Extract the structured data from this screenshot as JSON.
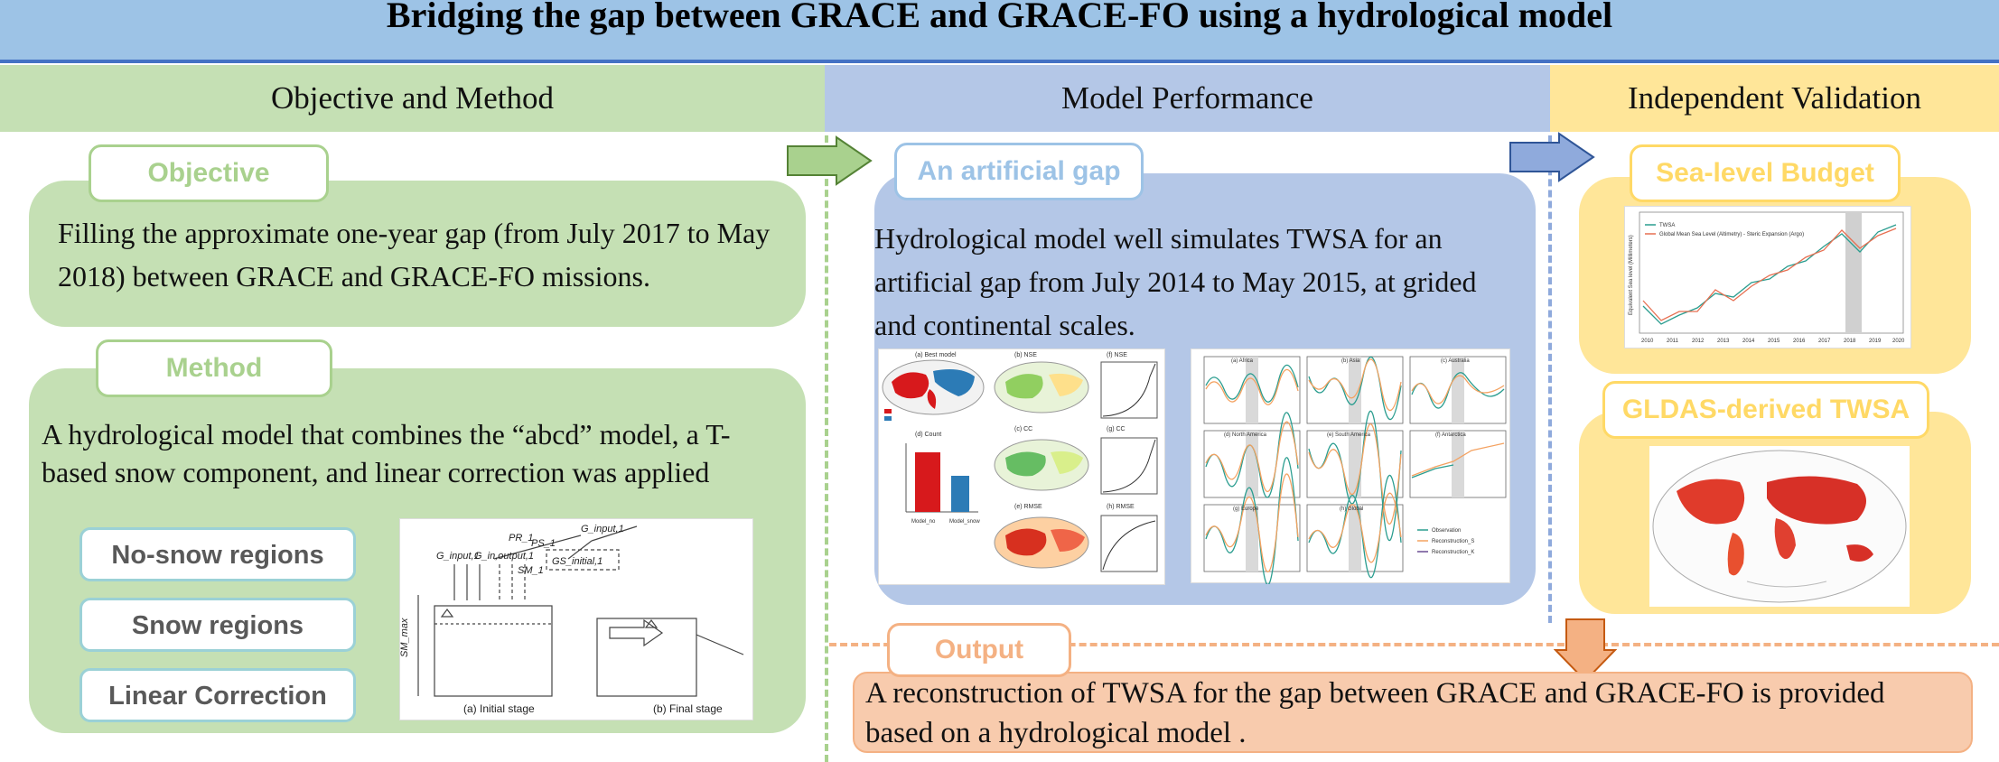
{
  "title": "Bridging the gap between GRACE and GRACE-FO using a hydrological model",
  "sections": {
    "left": "Objective and Method",
    "middle": "Model Performance",
    "right": "Independent Validation"
  },
  "objective": {
    "tag": "Objective",
    "text": "Filling the approximate one-year gap (from July 2017 to May 2018) between GRACE and GRACE-FO missions."
  },
  "method": {
    "tag": "Method",
    "text": "A hydrological model that combines the “abcd” model, a T-based snow component, and linear correction was applied",
    "regions": [
      "No-snow regions",
      "Snow regions",
      "Linear Correction"
    ],
    "diagram": {
      "caption_initial": "(a) Initial stage",
      "caption_final": "(b) Final stage"
    }
  },
  "performance": {
    "tag": "An artificial gap",
    "text": "Hydrological model well simulates TWSA for an artificial gap from July 2014 to May 2015, at grided and continental scales.",
    "map_panels": [
      "(a) Best model",
      "(b) NSE",
      "(c) CC",
      "(e) RMSE",
      "(d) Count",
      "(f) NSE",
      "(g) CC",
      "(h) RMSE"
    ],
    "bar_labels": [
      "Model_no",
      "Model_snow"
    ],
    "continents": [
      "(a) Africa",
      "(b) Asia",
      "(c) Australia",
      "(d) North America",
      "(e) South America",
      "(f) Antarctica",
      "(g) Europe",
      "(h) Global"
    ],
    "legend": [
      "Observation",
      "Reconstruction_S",
      "Reconstruction_K"
    ]
  },
  "validation": {
    "sea_tag": "Sea-level Budget",
    "gldas_tag": "GLDAS-derived TWSA",
    "sea_legend": [
      "TWSA",
      "Global Mean Sea Level (Altimetry) - Steric Expansion (Argo)"
    ],
    "sea_ylabel": "Equivalent Sea level (Millimeters)",
    "years": [
      "2010",
      "2011",
      "2012",
      "2013",
      "2014",
      "2015",
      "2016",
      "2017",
      "2018",
      "2019",
      "2020"
    ]
  },
  "output": {
    "tag": "Output",
    "text": "A reconstruction of TWSA for the gap between GRACE and GRACE-FO  is provided based on a hydrological model ."
  },
  "colors": {
    "green_light": "#c5e0b4",
    "blue_light": "#b4c7e7",
    "yellow_light": "#ffe699",
    "orange_light": "#f8cbad",
    "title_bg": "#9dc3e6"
  }
}
